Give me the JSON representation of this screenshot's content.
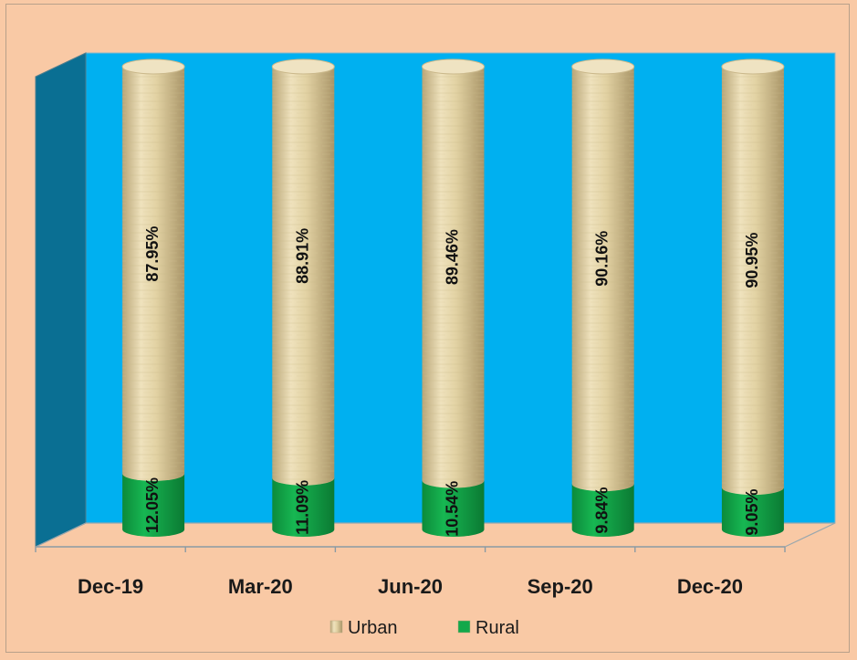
{
  "chart_data": {
    "type": "bar",
    "stacked": true,
    "style": "3d-cylinder",
    "orientation": "vertical",
    "categories": [
      "Dec-19",
      "Mar-20",
      "Jun-20",
      "Sep-20",
      "Dec-20"
    ],
    "series": [
      {
        "name": "Rural",
        "values": [
          12.05,
          11.09,
          10.54,
          9.84,
          9.05
        ],
        "labels": [
          "12.05%",
          "11.09%",
          "10.54%",
          "9.84%",
          "9.05%"
        ],
        "color": "#12a84a"
      },
      {
        "name": "Urban",
        "values": [
          87.95,
          88.91,
          89.46,
          90.16,
          90.95
        ],
        "labels": [
          "87.95%",
          "88.91%",
          "89.46%",
          "90.16%",
          "90.95%"
        ],
        "color": "#e6d6a8"
      }
    ],
    "ylim": [
      0,
      100
    ],
    "legend": {
      "position": "bottom",
      "entries": [
        "Urban",
        "Rural"
      ]
    },
    "colors": {
      "background": "#f9c9a5",
      "wall": "#00b0f0",
      "side_wall": "#0a6f93"
    }
  }
}
